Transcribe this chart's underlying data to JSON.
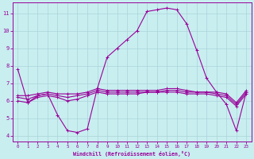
{
  "xlabel": "Windchill (Refroidissement éolien,°C)",
  "bg_color": "#c8eef0",
  "grid_color": "#aad4d8",
  "line_color": "#990099",
  "xlim_min": -0.5,
  "xlim_max": 23.5,
  "ylim_min": 3.7,
  "ylim_max": 11.6,
  "yticks": [
    4,
    5,
    6,
    7,
    8,
    9,
    10,
    11
  ],
  "xticks": [
    0,
    1,
    2,
    3,
    4,
    5,
    6,
    7,
    8,
    9,
    10,
    11,
    12,
    13,
    14,
    15,
    16,
    17,
    18,
    19,
    20,
    21,
    22,
    23
  ],
  "line1_x": [
    0,
    1,
    2,
    3,
    4,
    5,
    6,
    7,
    8,
    9,
    10,
    11,
    12,
    13,
    14,
    15,
    16,
    17,
    18,
    19,
    20,
    21,
    22,
    23
  ],
  "line1_y": [
    7.8,
    5.9,
    6.3,
    6.4,
    5.2,
    4.3,
    4.2,
    4.4,
    6.7,
    8.5,
    9.0,
    9.5,
    10.0,
    11.1,
    11.2,
    11.3,
    11.2,
    10.4,
    8.9,
    7.3,
    6.5,
    5.8,
    4.3,
    6.5
  ],
  "line2_x": [
    0,
    1,
    2,
    3,
    4,
    5,
    6,
    7,
    8,
    9,
    10,
    11,
    12,
    13,
    14,
    15,
    16,
    17,
    18,
    19,
    20,
    21,
    22,
    23
  ],
  "line2_y": [
    6.3,
    6.3,
    6.4,
    6.5,
    6.4,
    6.4,
    6.4,
    6.5,
    6.7,
    6.6,
    6.6,
    6.6,
    6.6,
    6.6,
    6.6,
    6.7,
    6.7,
    6.6,
    6.5,
    6.5,
    6.5,
    6.4,
    5.9,
    6.6
  ],
  "line3_x": [
    0,
    1,
    2,
    3,
    4,
    5,
    6,
    7,
    8,
    9,
    10,
    11,
    12,
    13,
    14,
    15,
    16,
    17,
    18,
    19,
    20,
    21,
    22,
    23
  ],
  "line3_y": [
    6.2,
    6.1,
    6.3,
    6.4,
    6.3,
    6.2,
    6.3,
    6.4,
    6.6,
    6.5,
    6.5,
    6.5,
    6.5,
    6.5,
    6.5,
    6.6,
    6.6,
    6.5,
    6.5,
    6.5,
    6.4,
    6.3,
    5.8,
    6.5
  ],
  "line4_x": [
    0,
    1,
    2,
    3,
    4,
    5,
    6,
    7,
    8,
    9,
    10,
    11,
    12,
    13,
    14,
    15,
    16,
    17,
    18,
    19,
    20,
    21,
    22,
    23
  ],
  "line4_y": [
    6.0,
    5.9,
    6.2,
    6.3,
    6.2,
    6.0,
    6.1,
    6.3,
    6.5,
    6.4,
    6.4,
    6.4,
    6.4,
    6.5,
    6.5,
    6.5,
    6.5,
    6.4,
    6.4,
    6.4,
    6.3,
    6.2,
    5.7,
    6.4
  ]
}
